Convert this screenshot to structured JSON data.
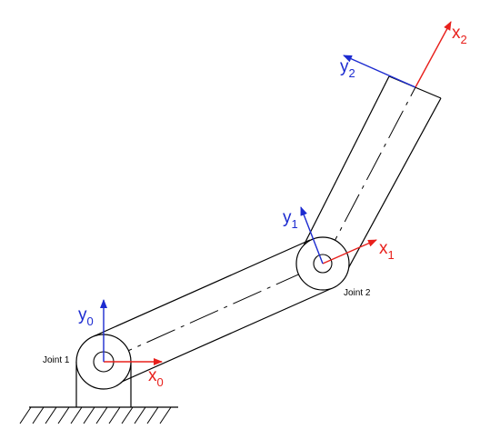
{
  "labels": {
    "joint1": "Joint 1",
    "joint2": "Joint 2",
    "x0_base": "x",
    "x0_sub": "0",
    "y0_base": "y",
    "y0_sub": "0",
    "x1_base": "x",
    "x1_sub": "1",
    "y1_base": "y",
    "y1_sub": "1",
    "x2_base": "x",
    "x2_sub": "2",
    "y2_base": "y",
    "y2_sub": "2"
  },
  "colors": {
    "x_axis": "#e8201c",
    "y_axis": "#1c2bd0",
    "outline": "#000000"
  }
}
